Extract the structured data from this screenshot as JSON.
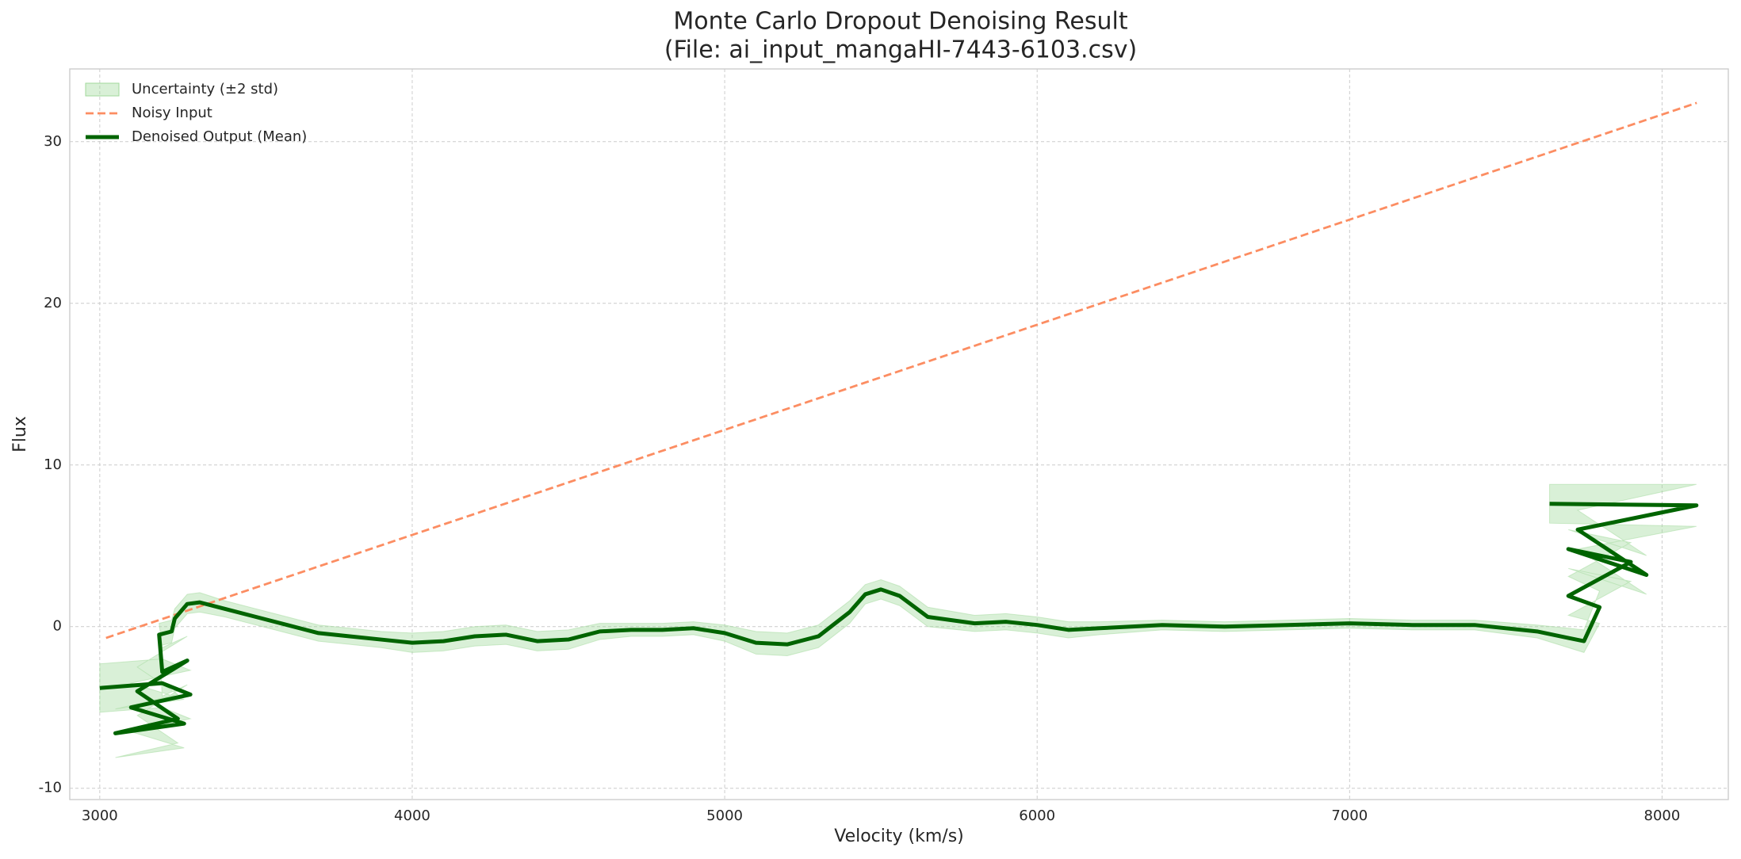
{
  "chart_data": {
    "type": "line",
    "title": "Monte Carlo Dropout Denoising Result",
    "subtitle": "(File: ai_input_mangaHI-7443-6103.csv)",
    "x_label": "Velocity (km/s)",
    "y_label": "Flux",
    "xlim": [
      2904,
      8212
    ],
    "ylim": [
      -10.7,
      34.5
    ],
    "xticks": [
      3000,
      4000,
      5000,
      6000,
      7000,
      8000
    ],
    "yticks": [
      -10,
      0,
      10,
      20,
      30
    ],
    "grid": true,
    "legend": "upper-left",
    "band": {
      "name": "Uncertainty (±2 std)",
      "color": "#a1d99b",
      "x": [
        3000,
        3200,
        3290,
        3100,
        3270,
        3050,
        3250,
        3120,
        3280,
        3200,
        3190,
        3230,
        3240,
        3280,
        3320,
        3400,
        3500,
        3600,
        3700,
        3800,
        3900,
        4000,
        4100,
        4200,
        4300,
        4400,
        4500,
        4600,
        4700,
        4800,
        4900,
        5000,
        5100,
        5200,
        5300,
        5400,
        5450,
        5500,
        5560,
        5650,
        5800,
        5900,
        6000,
        6100,
        6200,
        6400,
        6600,
        6800,
        7000,
        7200,
        7400,
        7600,
        7700,
        7750,
        7800,
        7700,
        7900,
        7700,
        7950,
        7730,
        8110,
        7640
      ],
      "lower": [
        -5.3,
        -5.0,
        -5.7,
        -6.5,
        -7.5,
        -8.1,
        -7.2,
        -5.5,
        -3.6,
        -4.3,
        -1.2,
        -1.0,
        -0.1,
        0.8,
        0.9,
        0.6,
        0.1,
        -0.4,
        -0.9,
        -1.1,
        -1.3,
        -1.6,
        -1.5,
        -1.2,
        -1.1,
        -1.5,
        -1.4,
        -0.8,
        -0.6,
        -0.6,
        -0.5,
        -0.9,
        -1.7,
        -1.8,
        -1.3,
        0.2,
        1.4,
        1.7,
        1.3,
        0.0,
        -0.3,
        -0.2,
        -0.4,
        -0.7,
        -0.5,
        -0.2,
        -0.3,
        -0.2,
        -0.1,
        -0.2,
        -0.2,
        -0.7,
        -1.3,
        -1.6,
        0.2,
        0.7,
        2.8,
        3.6,
        2.0,
        4.8,
        6.2,
        6.4
      ],
      "upper": [
        -2.3,
        -2.0,
        -2.7,
        -3.5,
        -4.5,
        -5.1,
        -4.2,
        -2.5,
        -0.6,
        -1.3,
        0.2,
        0.4,
        1.1,
        2.0,
        2.1,
        1.6,
        1.1,
        0.6,
        0.1,
        -0.1,
        -0.3,
        -0.4,
        -0.3,
        0.0,
        0.1,
        -0.3,
        -0.2,
        0.2,
        0.2,
        0.2,
        0.3,
        0.1,
        -0.3,
        -0.4,
        0.1,
        1.6,
        2.6,
        2.9,
        2.5,
        1.2,
        0.7,
        0.8,
        0.6,
        0.3,
        0.3,
        0.4,
        0.3,
        0.4,
        0.5,
        0.4,
        0.4,
        0.1,
        -0.1,
        -0.2,
        2.2,
        3.1,
        5.2,
        6.0,
        4.4,
        7.2,
        8.8,
        8.8
      ]
    },
    "series": [
      {
        "name": "Noisy Input",
        "color": "#fc8d62",
        "dashed": true,
        "x": [
          3020,
          8111
        ],
        "values": [
          -0.7,
          32.4
        ]
      },
      {
        "name": "Denoised Output (Mean)",
        "color": "#006400",
        "dashed": false,
        "x": [
          3000,
          3200,
          3290,
          3100,
          3270,
          3050,
          3250,
          3120,
          3280,
          3200,
          3190,
          3230,
          3240,
          3280,
          3320,
          3400,
          3500,
          3600,
          3700,
          3800,
          3900,
          4000,
          4100,
          4200,
          4300,
          4400,
          4500,
          4600,
          4700,
          4800,
          4900,
          5000,
          5100,
          5200,
          5300,
          5400,
          5450,
          5500,
          5560,
          5650,
          5800,
          5900,
          6000,
          6100,
          6200,
          6400,
          6600,
          6800,
          7000,
          7200,
          7400,
          7600,
          7700,
          7750,
          7800,
          7700,
          7900,
          7700,
          7950,
          7730,
          8110,
          7640
        ],
        "values": [
          -3.8,
          -3.5,
          -4.2,
          -5.0,
          -6.0,
          -6.6,
          -5.7,
          -4.0,
          -2.1,
          -2.8,
          -0.5,
          -0.3,
          0.5,
          1.4,
          1.5,
          1.1,
          0.6,
          0.1,
          -0.4,
          -0.6,
          -0.8,
          -1.0,
          -0.9,
          -0.6,
          -0.5,
          -0.9,
          -0.8,
          -0.3,
          -0.2,
          -0.2,
          -0.1,
          -0.4,
          -1.0,
          -1.1,
          -0.6,
          0.9,
          2.0,
          2.3,
          1.9,
          0.6,
          0.2,
          0.3,
          0.1,
          -0.2,
          -0.1,
          0.1,
          0.0,
          0.1,
          0.2,
          0.1,
          0.1,
          -0.3,
          -0.7,
          -0.9,
          1.2,
          1.9,
          4.0,
          4.8,
          3.2,
          6.0,
          7.5,
          7.6
        ]
      }
    ]
  }
}
